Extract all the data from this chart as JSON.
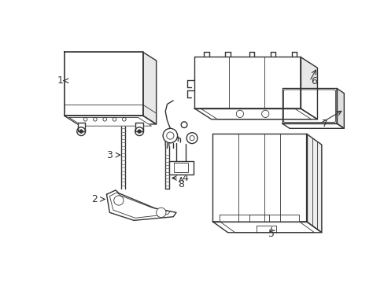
{
  "bg_color": "#ffffff",
  "line_color": "#333333",
  "label_color": "#000000",
  "lw_main": 1.0,
  "lw_thin": 0.6,
  "lw_thick": 1.2
}
